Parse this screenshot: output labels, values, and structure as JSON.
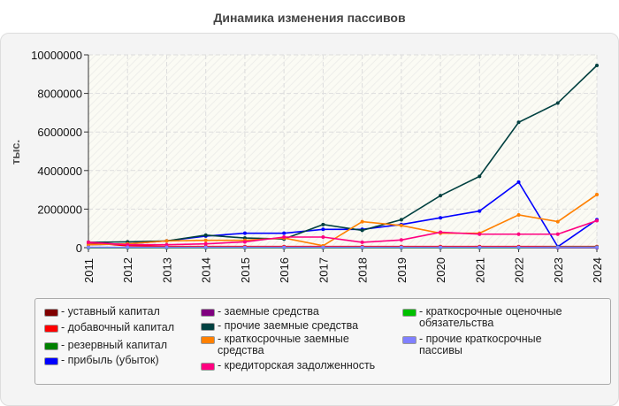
{
  "chart_data": {
    "type": "line",
    "title": "Динамика изменения пассивов",
    "ylabel": "тыс.",
    "xlabel": "",
    "ylim": [
      0,
      10000000
    ],
    "yticks": [
      "0",
      "2000000",
      "4000000",
      "6000000",
      "8000000",
      "10000000"
    ],
    "categories": [
      "2011",
      "2012",
      "2013",
      "2014",
      "2015",
      "2016",
      "2017",
      "2018",
      "2019",
      "2020",
      "2021",
      "2022",
      "2023",
      "2024"
    ],
    "grid": true,
    "legend_position": "bottom",
    "series": [
      {
        "name": "уставный капитал",
        "color": "#800000",
        "values": [
          10000,
          10000,
          10000,
          10000,
          10000,
          10000,
          10000,
          10000,
          10000,
          10000,
          10000,
          10000,
          10000,
          10000
        ]
      },
      {
        "name": "добавочный капитал",
        "color": "#ff0000",
        "values": [
          250000,
          100000,
          60000,
          60000,
          60000,
          60000,
          60000,
          60000,
          60000,
          60000,
          60000,
          60000,
          60000,
          60000
        ]
      },
      {
        "name": "резервный капитал",
        "color": "#008000",
        "values": [
          5000,
          5000,
          5000,
          5000,
          5000,
          5000,
          5000,
          5000,
          5000,
          5000,
          5000,
          5000,
          5000,
          5000
        ]
      },
      {
        "name": "прибыль (убыток)",
        "color": "#0000ff",
        "values": [
          150000,
          200000,
          350000,
          600000,
          750000,
          750000,
          950000,
          950000,
          1200000,
          1550000,
          1900000,
          3400000,
          50000,
          1450000
        ]
      },
      {
        "name": "заемные средства",
        "color": "#800080",
        "values": [
          0,
          0,
          0,
          0,
          0,
          0,
          0,
          0,
          0,
          0,
          0,
          0,
          0,
          0
        ]
      },
      {
        "name": "прочие заемные средства",
        "color": "#004040",
        "values": [
          280000,
          300000,
          350000,
          650000,
          500000,
          450000,
          1200000,
          900000,
          1450000,
          2700000,
          3700000,
          6500000,
          7500000,
          9450000
        ]
      },
      {
        "name": "краткосрочные заемные средства",
        "color": "#ff8000",
        "values": [
          150000,
          200000,
          350000,
          380000,
          380000,
          500000,
          100000,
          1350000,
          1150000,
          750000,
          750000,
          1700000,
          1350000,
          2750000
        ]
      },
      {
        "name": "кредиторская задолженность",
        "color": "#ff0080",
        "values": [
          280000,
          150000,
          150000,
          200000,
          300000,
          550000,
          550000,
          280000,
          400000,
          800000,
          700000,
          700000,
          700000,
          1400000
        ]
      },
      {
        "name": "краткосрочные оценочные обязательства",
        "color": "#00c000",
        "values": [
          0,
          0,
          0,
          0,
          0,
          0,
          0,
          0,
          0,
          0,
          0,
          0,
          30000,
          30000
        ]
      },
      {
        "name": "прочие краткосрочные пассивы",
        "color": "#8080ff",
        "values": [
          20000,
          20000,
          20000,
          20000,
          20000,
          20000,
          20000,
          20000,
          20000,
          20000,
          20000,
          20000,
          20000,
          20000
        ]
      }
    ]
  }
}
